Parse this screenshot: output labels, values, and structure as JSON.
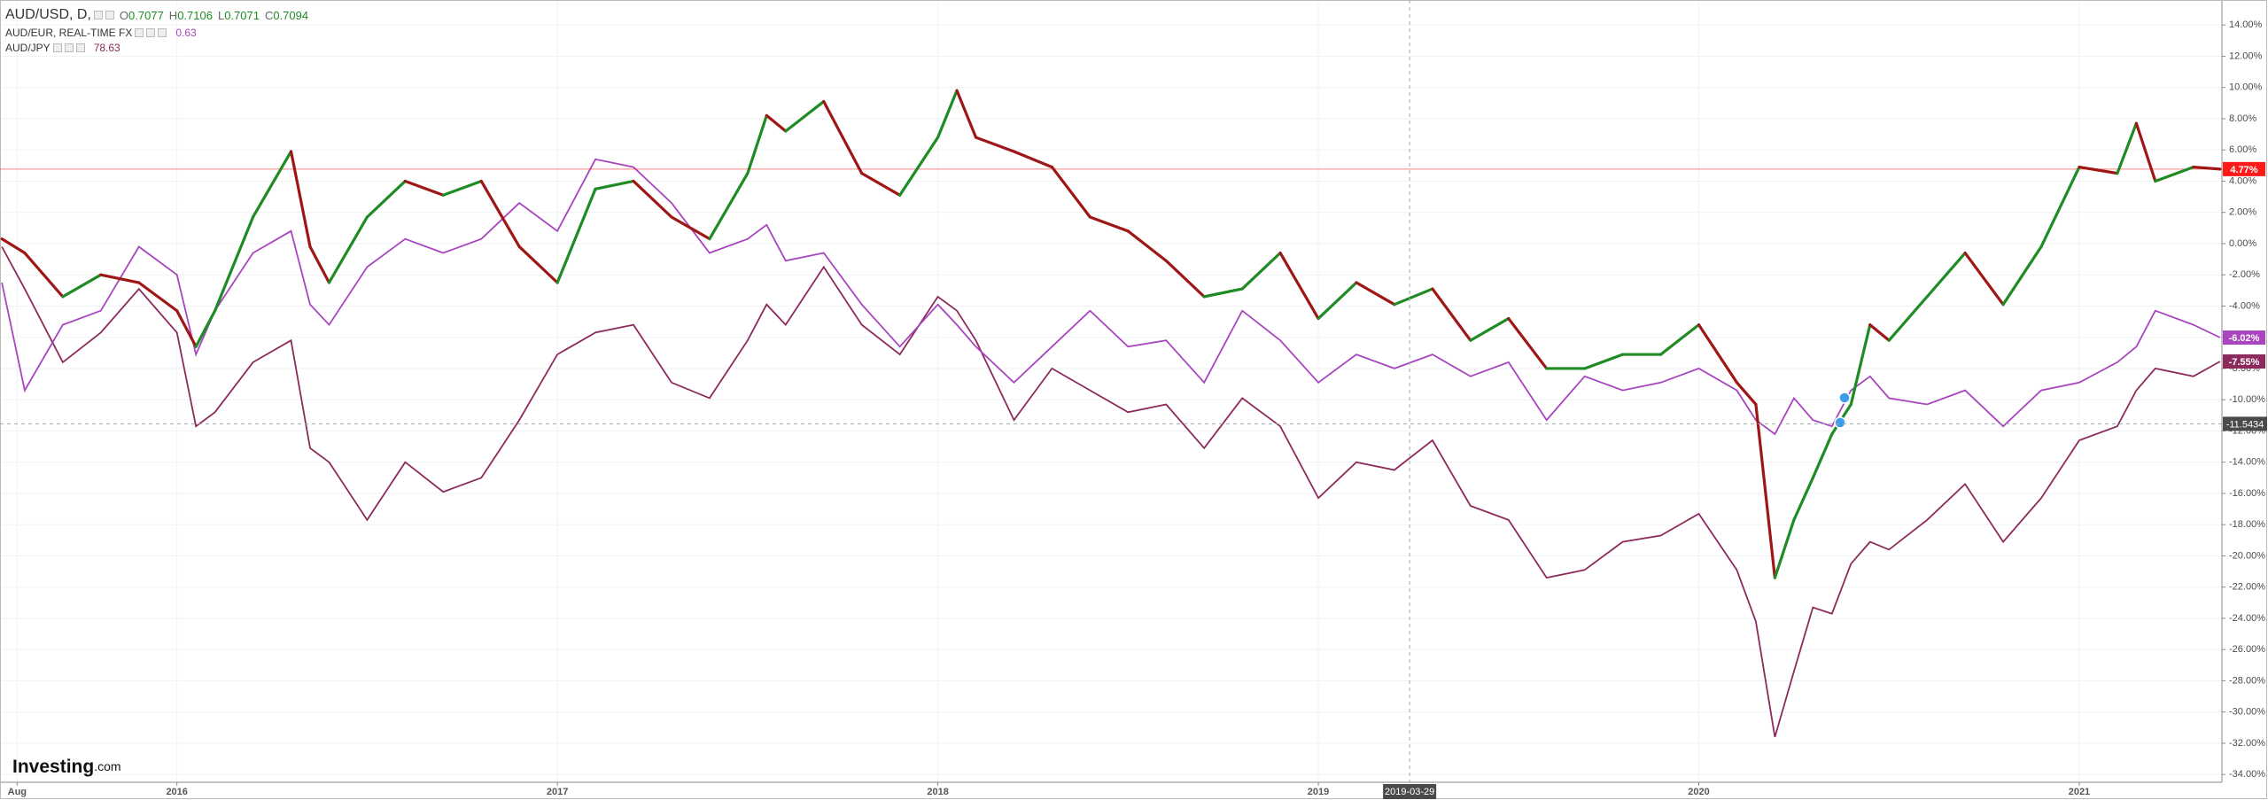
{
  "chart_data": {
    "type": "line",
    "series": [
      {
        "name": "AUD/USD, D,",
        "style": "candles",
        "color": "#ff1a1a",
        "up_color": "#1f8b24",
        "down_color": "#9e1616",
        "ohlc": [
          {
            "key": "O",
            "value": 0.7077
          },
          {
            "key": "H",
            "value": 0.7106
          },
          {
            "key": "L",
            "value": 0.7071
          },
          {
            "key": "C",
            "value": 0.7094
          }
        ],
        "last_label": "4.77%",
        "values": [
          0.3,
          -0.6,
          -3.4,
          -2.0,
          -2.5,
          -4.3,
          -6.6,
          -4.3,
          1.7,
          5.9,
          -0.2,
          -2.5,
          1.7,
          4.0,
          3.1,
          4.0,
          -0.2,
          -2.5,
          3.5,
          4.0,
          1.7,
          0.3,
          4.5,
          8.2,
          7.2,
          9.1,
          4.5,
          3.1,
          6.8,
          9.8,
          6.8,
          5.9,
          4.9,
          1.7,
          0.8,
          -1.1,
          -3.4,
          -2.9,
          -0.6,
          -4.8,
          -2.5,
          -3.9,
          -2.9,
          -6.2,
          -4.8,
          -8.0,
          -8.0,
          -7.1,
          -7.1,
          -5.2,
          -8.9,
          -10.3,
          -21.4,
          -17.7,
          -15.0,
          -12.2,
          -10.3,
          -5.2,
          -6.2,
          -3.4,
          -0.6,
          -3.9,
          -0.2,
          4.9,
          4.5,
          7.7,
          4.0,
          4.9,
          4.77
        ]
      },
      {
        "name": "AUD/EUR, REAL-TIME FX",
        "style": "line",
        "color": "#a845bf",
        "last_value": 0.63,
        "last_label": "-6.02%",
        "values": [
          -2.5,
          -9.4,
          -5.2,
          -4.3,
          -0.2,
          -2.0,
          -7.1,
          -4.3,
          -0.6,
          0.8,
          -3.9,
          -5.2,
          -1.5,
          0.3,
          -0.6,
          0.3,
          2.6,
          0.8,
          5.4,
          4.9,
          2.6,
          -0.6,
          0.3,
          1.2,
          -1.1,
          -0.6,
          -3.9,
          -6.6,
          -3.9,
          -5.2,
          -6.6,
          -8.9,
          -6.6,
          -4.3,
          -6.6,
          -6.2,
          -8.9,
          -4.3,
          -6.2,
          -8.9,
          -7.1,
          -8.0,
          -7.1,
          -8.5,
          -7.6,
          -11.3,
          -8.5,
          -9.4,
          -8.9,
          -8.0,
          -9.4,
          -11.3,
          -12.2,
          -9.9,
          -11.3,
          -11.7,
          -9.4,
          -8.5,
          -9.9,
          -10.3,
          -9.4,
          -11.7,
          -9.4,
          -8.9,
          -7.6,
          -6.6,
          -4.3,
          -5.2,
          -6.02
        ]
      },
      {
        "name": "AUD/JPY",
        "style": "line",
        "color": "#8c2a5c",
        "last_value": 78.63,
        "last_label": "-7.55%",
        "values": [
          -0.2,
          -2.9,
          -7.6,
          -5.7,
          -2.9,
          -5.7,
          -11.7,
          -10.8,
          -7.6,
          -6.2,
          -13.1,
          -14.0,
          -17.7,
          -14.0,
          -15.9,
          -15.0,
          -11.3,
          -7.1,
          -5.7,
          -5.2,
          -8.9,
          -9.9,
          -6.2,
          -3.9,
          -5.2,
          -1.5,
          -5.2,
          -7.1,
          -3.4,
          -4.3,
          -6.2,
          -11.3,
          -8.0,
          -9.4,
          -10.8,
          -10.3,
          -13.1,
          -9.9,
          -11.7,
          -16.3,
          -14.0,
          -14.5,
          -12.6,
          -16.8,
          -17.7,
          -21.4,
          -20.9,
          -19.1,
          -18.7,
          -17.3,
          -20.9,
          -24.2,
          -31.6,
          -27.4,
          -23.3,
          -23.7,
          -20.5,
          -19.1,
          -19.6,
          -17.7,
          -15.4,
          -19.1,
          -16.3,
          -12.6,
          -11.7,
          -9.4,
          -8.0,
          -8.5,
          -7.55
        ]
      }
    ],
    "x": [
      2015.54,
      2015.6,
      2015.7,
      2015.8,
      2015.9,
      2016.0,
      2016.05,
      2016.1,
      2016.2,
      2016.3,
      2016.35,
      2016.4,
      2016.5,
      2016.6,
      2016.7,
      2016.8,
      2016.9,
      2017.0,
      2017.1,
      2017.2,
      2017.3,
      2017.4,
      2017.5,
      2017.55,
      2017.6,
      2017.7,
      2017.8,
      2017.9,
      2018.0,
      2018.05,
      2018.1,
      2018.2,
      2018.3,
      2018.4,
      2018.5,
      2018.6,
      2018.7,
      2018.8,
      2018.9,
      2019.0,
      2019.1,
      2019.2,
      2019.3,
      2019.4,
      2019.5,
      2019.6,
      2019.7,
      2019.8,
      2019.9,
      2020.0,
      2020.1,
      2020.15,
      2020.2,
      2020.25,
      2020.3,
      2020.35,
      2020.4,
      2020.45,
      2020.5,
      2020.6,
      2020.7,
      2020.8,
      2020.9,
      2021.0,
      2021.1,
      2021.15,
      2021.2,
      2021.3,
      2021.37
    ],
    "xlim": [
      2015.535,
      2021.375
    ],
    "xticks": [
      {
        "value": 2015.58,
        "label": "Aug"
      },
      2016,
      2017,
      2018,
      2019,
      2020,
      2021
    ],
    "ylim": [
      -34.5,
      15.6
    ],
    "yticks": [
      {
        "value": 14,
        "label": "14.00%"
      },
      {
        "value": 12,
        "label": "12.00%"
      },
      {
        "value": 10,
        "label": "10.00%"
      },
      {
        "value": 8,
        "label": "8.00%"
      },
      {
        "value": 6,
        "label": "6.00%"
      },
      {
        "value": 4,
        "label": "4.00%"
      },
      {
        "value": 2,
        "label": "2.00%"
      },
      {
        "value": 0,
        "label": "0.00%"
      },
      {
        "value": -2,
        "label": "-2.00%"
      },
      {
        "value": -4,
        "label": "-4.00%"
      },
      {
        "value": -6,
        "label": "-6.00%"
      },
      {
        "value": -8,
        "label": "-8.00%"
      },
      {
        "value": -10,
        "label": "-10.00%"
      },
      {
        "value": -12,
        "label": "-12.00%"
      },
      {
        "value": -14,
        "label": "-14.00%"
      },
      {
        "value": -16,
        "label": "-16.00%"
      },
      {
        "value": -18,
        "label": "-18.00%"
      },
      {
        "value": -20,
        "label": "-20.00%"
      },
      {
        "value": -22,
        "label": "-22.00%"
      },
      {
        "value": -24,
        "label": "-24.00%"
      },
      {
        "value": -26,
        "label": "-26.00%"
      },
      {
        "value": -28,
        "label": "-28.00%"
      },
      {
        "value": -30,
        "label": "-30.00%"
      },
      {
        "value": -32,
        "label": "-32.00%"
      },
      {
        "value": -34,
        "label": "-34.00%"
      }
    ],
    "grid": true,
    "crosshair": {
      "x": 2019.24,
      "x_label": "2019-03-29",
      "y": -11.5434
    },
    "logo": {
      "name": "Investing",
      "suffix": ".com"
    }
  }
}
